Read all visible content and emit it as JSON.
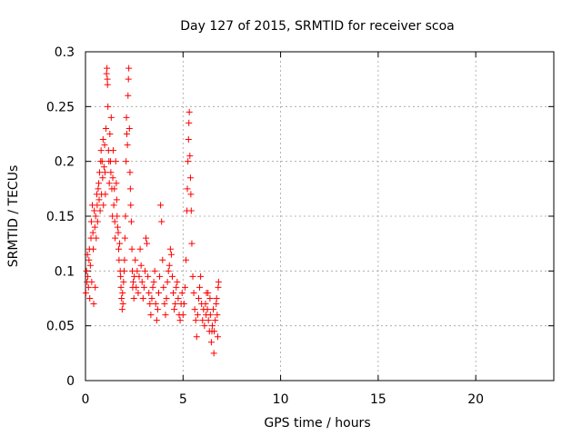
{
  "chart_data": {
    "type": "scatter",
    "title": "Day 127 of 2015, SRMTID for receiver scoa",
    "xlabel": "GPS time / hours",
    "ylabel": "SRMTID / TECUs",
    "xlim": [
      0,
      24
    ],
    "ylim": [
      0,
      0.3
    ],
    "x_ticks": [
      0,
      5,
      10,
      15,
      20
    ],
    "y_ticks": [
      0,
      0.05,
      0.1,
      0.15,
      0.2,
      0.25,
      0.3
    ],
    "x_tick_labels": [
      "0",
      "5",
      "10",
      "15",
      "20"
    ],
    "y_tick_labels": [
      "0",
      "0.05",
      "0.1",
      "0.15",
      "0.2",
      "0.25",
      "0.3"
    ],
    "grid": true,
    "marker": "+",
    "series": [
      {
        "name": "SRMTID",
        "color": "#ff0000",
        "points": [
          [
            0.02,
            0.08
          ],
          [
            0.05,
            0.1
          ],
          [
            0.08,
            0.09
          ],
          [
            0.1,
            0.115
          ],
          [
            0.12,
            0.095
          ],
          [
            0.15,
            0.085
          ],
          [
            0.18,
            0.11
          ],
          [
            0.2,
            0.12
          ],
          [
            0.22,
            0.075
          ],
          [
            0.25,
            0.105
          ],
          [
            0.28,
            0.13
          ],
          [
            0.3,
            0.145
          ],
          [
            0.32,
            0.09
          ],
          [
            0.35,
            0.16
          ],
          [
            0.38,
            0.135
          ],
          [
            0.4,
            0.12
          ],
          [
            0.42,
            0.07
          ],
          [
            0.45,
            0.155
          ],
          [
            0.48,
            0.14
          ],
          [
            0.5,
            0.085
          ],
          [
            0.52,
            0.15
          ],
          [
            0.55,
            0.13
          ],
          [
            0.58,
            0.17
          ],
          [
            0.6,
            0.16
          ],
          [
            0.62,
            0.145
          ],
          [
            0.65,
            0.175
          ],
          [
            0.68,
            0.18
          ],
          [
            0.7,
            0.165
          ],
          [
            0.72,
            0.19
          ],
          [
            0.75,
            0.155
          ],
          [
            0.78,
            0.2
          ],
          [
            0.8,
            0.21
          ],
          [
            0.82,
            0.17
          ],
          [
            0.85,
            0.2
          ],
          [
            0.88,
            0.185
          ],
          [
            0.9,
            0.22
          ],
          [
            0.92,
            0.16
          ],
          [
            0.95,
            0.195
          ],
          [
            0.98,
            0.215
          ],
          [
            1.0,
            0.19
          ],
          [
            1.02,
            0.17
          ],
          [
            1.05,
            0.23
          ],
          [
            1.08,
            0.28
          ],
          [
            1.1,
            0.285
          ],
          [
            1.12,
            0.275
          ],
          [
            1.13,
            0.27
          ],
          [
            1.15,
            0.25
          ],
          [
            1.18,
            0.21
          ],
          [
            1.2,
            0.2
          ],
          [
            1.22,
            0.18
          ],
          [
            1.25,
            0.225
          ],
          [
            1.28,
            0.2
          ],
          [
            1.3,
            0.19
          ],
          [
            1.32,
            0.24
          ],
          [
            1.35,
            0.175
          ],
          [
            1.38,
            0.15
          ],
          [
            1.4,
            0.185
          ],
          [
            1.42,
            0.21
          ],
          [
            1.45,
            0.16
          ],
          [
            1.48,
            0.175
          ],
          [
            1.5,
            0.145
          ],
          [
            1.52,
            0.13
          ],
          [
            1.55,
            0.2
          ],
          [
            1.58,
            0.18
          ],
          [
            1.6,
            0.165
          ],
          [
            1.62,
            0.15
          ],
          [
            1.65,
            0.14
          ],
          [
            1.68,
            0.135
          ],
          [
            1.7,
            0.12
          ],
          [
            1.72,
            0.11
          ],
          [
            1.75,
            0.125
          ],
          [
            1.78,
            0.1
          ],
          [
            1.8,
            0.095
          ],
          [
            1.82,
            0.085
          ],
          [
            1.85,
            0.075
          ],
          [
            1.88,
            0.065
          ],
          [
            1.9,
            0.08
          ],
          [
            1.92,
            0.07
          ],
          [
            1.95,
            0.09
          ],
          [
            1.98,
            0.1
          ],
          [
            2.0,
            0.11
          ],
          [
            2.02,
            0.13
          ],
          [
            2.05,
            0.15
          ],
          [
            2.08,
            0.2
          ],
          [
            2.1,
            0.24
          ],
          [
            2.12,
            0.225
          ],
          [
            2.15,
            0.215
          ],
          [
            2.18,
            0.26
          ],
          [
            2.2,
            0.275
          ],
          [
            2.22,
            0.285
          ],
          [
            2.25,
            0.23
          ],
          [
            2.28,
            0.19
          ],
          [
            2.3,
            0.175
          ],
          [
            2.32,
            0.16
          ],
          [
            2.35,
            0.145
          ],
          [
            2.38,
            0.12
          ],
          [
            2.4,
            0.1
          ],
          [
            2.42,
            0.085
          ],
          [
            2.45,
            0.09
          ],
          [
            2.48,
            0.075
          ],
          [
            2.5,
            0.095
          ],
          [
            2.55,
            0.11
          ],
          [
            2.6,
            0.085
          ],
          [
            2.65,
            0.1
          ],
          [
            2.7,
            0.08
          ],
          [
            2.75,
            0.095
          ],
          [
            2.8,
            0.12
          ],
          [
            2.85,
            0.105
          ],
          [
            2.9,
            0.09
          ],
          [
            2.95,
            0.075
          ],
          [
            3.0,
            0.085
          ],
          [
            3.05,
            0.1
          ],
          [
            3.1,
            0.13
          ],
          [
            3.15,
            0.125
          ],
          [
            3.2,
            0.095
          ],
          [
            3.25,
            0.08
          ],
          [
            3.3,
            0.07
          ],
          [
            3.35,
            0.06
          ],
          [
            3.4,
            0.075
          ],
          [
            3.45,
            0.085
          ],
          [
            3.5,
            0.09
          ],
          [
            3.55,
            0.1
          ],
          [
            3.6,
            0.07
          ],
          [
            3.65,
            0.055
          ],
          [
            3.7,
            0.065
          ],
          [
            3.75,
            0.08
          ],
          [
            3.8,
            0.095
          ],
          [
            3.85,
            0.16
          ],
          [
            3.9,
            0.145
          ],
          [
            3.95,
            0.11
          ],
          [
            4.0,
            0.085
          ],
          [
            4.05,
            0.07
          ],
          [
            4.1,
            0.06
          ],
          [
            4.15,
            0.075
          ],
          [
            4.2,
            0.09
          ],
          [
            4.25,
            0.1
          ],
          [
            4.3,
            0.105
          ],
          [
            4.35,
            0.12
          ],
          [
            4.4,
            0.115
          ],
          [
            4.45,
            0.095
          ],
          [
            4.5,
            0.08
          ],
          [
            4.55,
            0.065
          ],
          [
            4.6,
            0.07
          ],
          [
            4.65,
            0.085
          ],
          [
            4.7,
            0.09
          ],
          [
            4.75,
            0.075
          ],
          [
            4.8,
            0.06
          ],
          [
            4.85,
            0.055
          ],
          [
            4.9,
            0.07
          ],
          [
            4.95,
            0.08
          ],
          [
            5.0,
            0.06
          ],
          [
            5.05,
            0.07
          ],
          [
            5.1,
            0.085
          ],
          [
            5.15,
            0.11
          ],
          [
            5.2,
            0.155
          ],
          [
            5.22,
            0.175
          ],
          [
            5.25,
            0.2
          ],
          [
            5.28,
            0.22
          ],
          [
            5.3,
            0.235
          ],
          [
            5.32,
            0.245
          ],
          [
            5.35,
            0.205
          ],
          [
            5.38,
            0.185
          ],
          [
            5.4,
            0.17
          ],
          [
            5.42,
            0.155
          ],
          [
            5.45,
            0.125
          ],
          [
            5.5,
            0.095
          ],
          [
            5.55,
            0.08
          ],
          [
            5.6,
            0.065
          ],
          [
            5.65,
            0.055
          ],
          [
            5.7,
            0.04
          ],
          [
            5.75,
            0.06
          ],
          [
            5.8,
            0.075
          ],
          [
            5.85,
            0.085
          ],
          [
            5.9,
            0.095
          ],
          [
            5.95,
            0.07
          ],
          [
            6.0,
            0.055
          ],
          [
            6.05,
            0.065
          ],
          [
            6.1,
            0.05
          ],
          [
            6.15,
            0.07
          ],
          [
            6.2,
            0.08
          ],
          [
            6.25,
            0.065
          ],
          [
            6.3,
            0.055
          ],
          [
            6.35,
            0.045
          ],
          [
            6.4,
            0.06
          ],
          [
            6.45,
            0.035
          ],
          [
            6.5,
            0.05
          ],
          [
            6.55,
            0.065
          ],
          [
            6.6,
            0.045
          ],
          [
            6.65,
            0.055
          ],
          [
            6.7,
            0.07
          ],
          [
            6.75,
            0.06
          ],
          [
            6.8,
            0.085
          ],
          [
            6.82,
            0.09
          ],
          [
            6.78,
            0.04
          ],
          [
            6.72,
            0.075
          ],
          [
            6.58,
            0.025
          ],
          [
            6.48,
            0.045
          ],
          [
            6.38,
            0.075
          ],
          [
            6.28,
            0.08
          ],
          [
            6.18,
            0.06
          ]
        ]
      }
    ]
  }
}
